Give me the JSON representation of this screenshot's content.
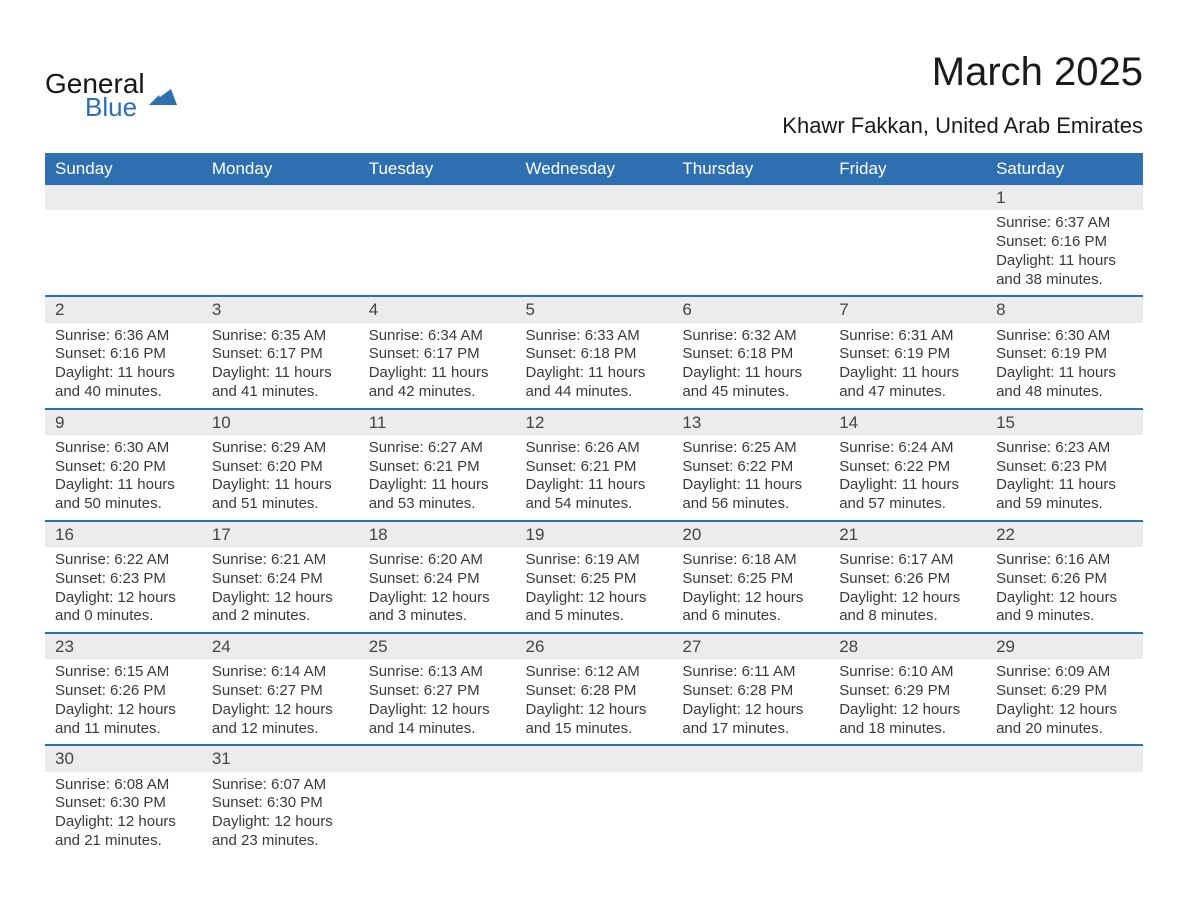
{
  "logo": {
    "word1": "General",
    "word2": "Blue",
    "shape_color": "#2d6fb0"
  },
  "title": "March 2025",
  "subtitle": "Khawr Fakkan, United Arab Emirates",
  "colors": {
    "header_bg": "#2d6fb0",
    "header_text": "#ffffff",
    "row_divider": "#2d6fb0",
    "daynum_bg": "#ececec",
    "body_text": "#3a3a3a",
    "page_bg": "#ffffff"
  },
  "typography": {
    "title_fontsize": 40,
    "subtitle_fontsize": 22,
    "header_fontsize": 17,
    "cell_fontsize": 15
  },
  "calendar": {
    "type": "table",
    "columns": [
      "Sunday",
      "Monday",
      "Tuesday",
      "Wednesday",
      "Thursday",
      "Friday",
      "Saturday"
    ],
    "weeks": [
      [
        null,
        null,
        null,
        null,
        null,
        null,
        {
          "day": "1",
          "sunrise": "Sunrise: 6:37 AM",
          "sunset": "Sunset: 6:16 PM",
          "daylight1": "Daylight: 11 hours",
          "daylight2": "and 38 minutes."
        }
      ],
      [
        {
          "day": "2",
          "sunrise": "Sunrise: 6:36 AM",
          "sunset": "Sunset: 6:16 PM",
          "daylight1": "Daylight: 11 hours",
          "daylight2": "and 40 minutes."
        },
        {
          "day": "3",
          "sunrise": "Sunrise: 6:35 AM",
          "sunset": "Sunset: 6:17 PM",
          "daylight1": "Daylight: 11 hours",
          "daylight2": "and 41 minutes."
        },
        {
          "day": "4",
          "sunrise": "Sunrise: 6:34 AM",
          "sunset": "Sunset: 6:17 PM",
          "daylight1": "Daylight: 11 hours",
          "daylight2": "and 42 minutes."
        },
        {
          "day": "5",
          "sunrise": "Sunrise: 6:33 AM",
          "sunset": "Sunset: 6:18 PM",
          "daylight1": "Daylight: 11 hours",
          "daylight2": "and 44 minutes."
        },
        {
          "day": "6",
          "sunrise": "Sunrise: 6:32 AM",
          "sunset": "Sunset: 6:18 PM",
          "daylight1": "Daylight: 11 hours",
          "daylight2": "and 45 minutes."
        },
        {
          "day": "7",
          "sunrise": "Sunrise: 6:31 AM",
          "sunset": "Sunset: 6:19 PM",
          "daylight1": "Daylight: 11 hours",
          "daylight2": "and 47 minutes."
        },
        {
          "day": "8",
          "sunrise": "Sunrise: 6:30 AM",
          "sunset": "Sunset: 6:19 PM",
          "daylight1": "Daylight: 11 hours",
          "daylight2": "and 48 minutes."
        }
      ],
      [
        {
          "day": "9",
          "sunrise": "Sunrise: 6:30 AM",
          "sunset": "Sunset: 6:20 PM",
          "daylight1": "Daylight: 11 hours",
          "daylight2": "and 50 minutes."
        },
        {
          "day": "10",
          "sunrise": "Sunrise: 6:29 AM",
          "sunset": "Sunset: 6:20 PM",
          "daylight1": "Daylight: 11 hours",
          "daylight2": "and 51 minutes."
        },
        {
          "day": "11",
          "sunrise": "Sunrise: 6:27 AM",
          "sunset": "Sunset: 6:21 PM",
          "daylight1": "Daylight: 11 hours",
          "daylight2": "and 53 minutes."
        },
        {
          "day": "12",
          "sunrise": "Sunrise: 6:26 AM",
          "sunset": "Sunset: 6:21 PM",
          "daylight1": "Daylight: 11 hours",
          "daylight2": "and 54 minutes."
        },
        {
          "day": "13",
          "sunrise": "Sunrise: 6:25 AM",
          "sunset": "Sunset: 6:22 PM",
          "daylight1": "Daylight: 11 hours",
          "daylight2": "and 56 minutes."
        },
        {
          "day": "14",
          "sunrise": "Sunrise: 6:24 AM",
          "sunset": "Sunset: 6:22 PM",
          "daylight1": "Daylight: 11 hours",
          "daylight2": "and 57 minutes."
        },
        {
          "day": "15",
          "sunrise": "Sunrise: 6:23 AM",
          "sunset": "Sunset: 6:23 PM",
          "daylight1": "Daylight: 11 hours",
          "daylight2": "and 59 minutes."
        }
      ],
      [
        {
          "day": "16",
          "sunrise": "Sunrise: 6:22 AM",
          "sunset": "Sunset: 6:23 PM",
          "daylight1": "Daylight: 12 hours",
          "daylight2": "and 0 minutes."
        },
        {
          "day": "17",
          "sunrise": "Sunrise: 6:21 AM",
          "sunset": "Sunset: 6:24 PM",
          "daylight1": "Daylight: 12 hours",
          "daylight2": "and 2 minutes."
        },
        {
          "day": "18",
          "sunrise": "Sunrise: 6:20 AM",
          "sunset": "Sunset: 6:24 PM",
          "daylight1": "Daylight: 12 hours",
          "daylight2": "and 3 minutes."
        },
        {
          "day": "19",
          "sunrise": "Sunrise: 6:19 AM",
          "sunset": "Sunset: 6:25 PM",
          "daylight1": "Daylight: 12 hours",
          "daylight2": "and 5 minutes."
        },
        {
          "day": "20",
          "sunrise": "Sunrise: 6:18 AM",
          "sunset": "Sunset: 6:25 PM",
          "daylight1": "Daylight: 12 hours",
          "daylight2": "and 6 minutes."
        },
        {
          "day": "21",
          "sunrise": "Sunrise: 6:17 AM",
          "sunset": "Sunset: 6:26 PM",
          "daylight1": "Daylight: 12 hours",
          "daylight2": "and 8 minutes."
        },
        {
          "day": "22",
          "sunrise": "Sunrise: 6:16 AM",
          "sunset": "Sunset: 6:26 PM",
          "daylight1": "Daylight: 12 hours",
          "daylight2": "and 9 minutes."
        }
      ],
      [
        {
          "day": "23",
          "sunrise": "Sunrise: 6:15 AM",
          "sunset": "Sunset: 6:26 PM",
          "daylight1": "Daylight: 12 hours",
          "daylight2": "and 11 minutes."
        },
        {
          "day": "24",
          "sunrise": "Sunrise: 6:14 AM",
          "sunset": "Sunset: 6:27 PM",
          "daylight1": "Daylight: 12 hours",
          "daylight2": "and 12 minutes."
        },
        {
          "day": "25",
          "sunrise": "Sunrise: 6:13 AM",
          "sunset": "Sunset: 6:27 PM",
          "daylight1": "Daylight: 12 hours",
          "daylight2": "and 14 minutes."
        },
        {
          "day": "26",
          "sunrise": "Sunrise: 6:12 AM",
          "sunset": "Sunset: 6:28 PM",
          "daylight1": "Daylight: 12 hours",
          "daylight2": "and 15 minutes."
        },
        {
          "day": "27",
          "sunrise": "Sunrise: 6:11 AM",
          "sunset": "Sunset: 6:28 PM",
          "daylight1": "Daylight: 12 hours",
          "daylight2": "and 17 minutes."
        },
        {
          "day": "28",
          "sunrise": "Sunrise: 6:10 AM",
          "sunset": "Sunset: 6:29 PM",
          "daylight1": "Daylight: 12 hours",
          "daylight2": "and 18 minutes."
        },
        {
          "day": "29",
          "sunrise": "Sunrise: 6:09 AM",
          "sunset": "Sunset: 6:29 PM",
          "daylight1": "Daylight: 12 hours",
          "daylight2": "and 20 minutes."
        }
      ],
      [
        {
          "day": "30",
          "sunrise": "Sunrise: 6:08 AM",
          "sunset": "Sunset: 6:30 PM",
          "daylight1": "Daylight: 12 hours",
          "daylight2": "and 21 minutes."
        },
        {
          "day": "31",
          "sunrise": "Sunrise: 6:07 AM",
          "sunset": "Sunset: 6:30 PM",
          "daylight1": "Daylight: 12 hours",
          "daylight2": "and 23 minutes."
        },
        null,
        null,
        null,
        null,
        null
      ]
    ]
  }
}
